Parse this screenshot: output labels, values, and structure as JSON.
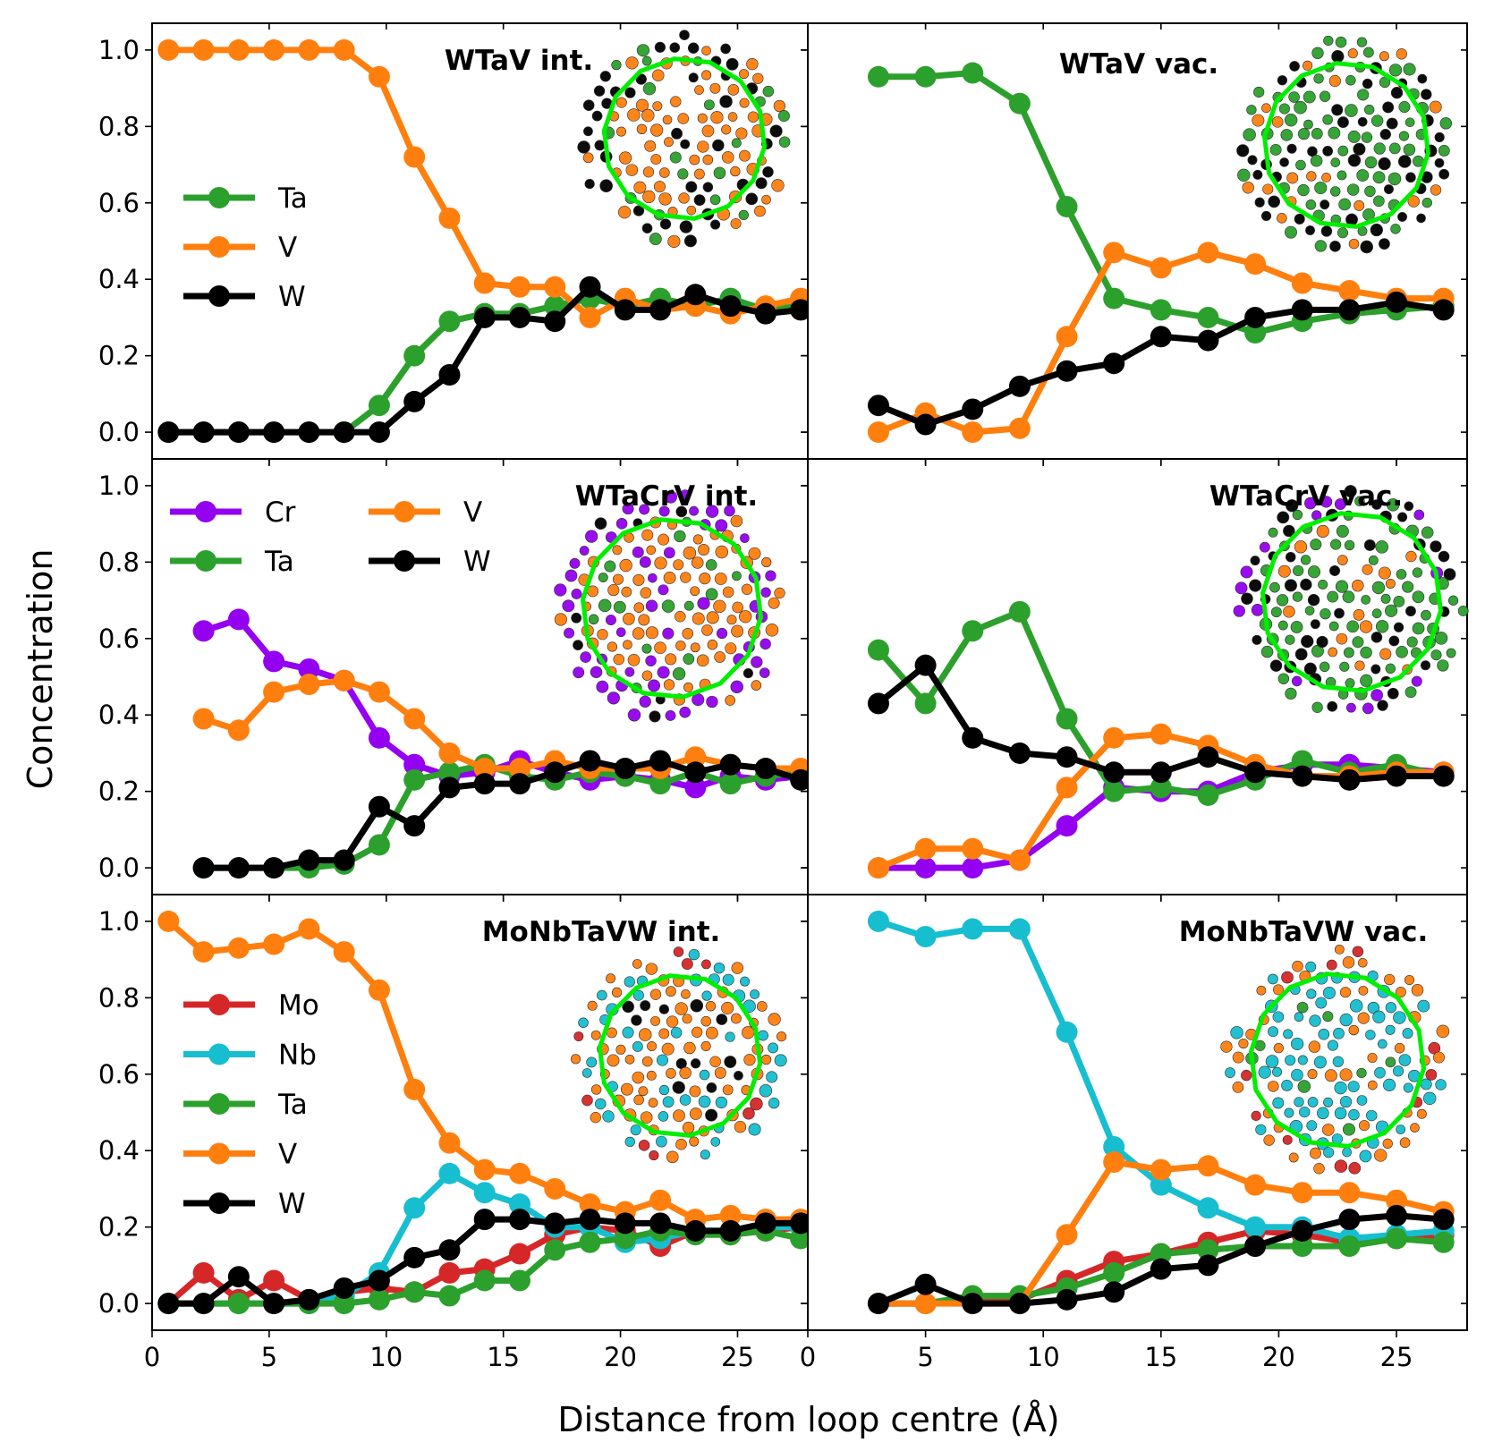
{
  "figure": {
    "xlabel": "Distance from loop centre (Å)",
    "ylabel": "Concentration"
  },
  "colors": {
    "Ta": "#2ca02c",
    "V": "#ff7f0e",
    "W": "#000000",
    "Cr": "#9400f0",
    "Mo": "#d62728",
    "Nb": "#17becf",
    "loop": "#00ee00"
  },
  "chart_data": [
    {
      "type": "line",
      "title": "WTaV int.",
      "xlabel": "Distance from loop centre (Å)",
      "ylabel": "Concentration",
      "xlim": [
        0,
        28
      ],
      "ylim": [
        -0.07,
        1.07
      ],
      "xticks": [
        "0",
        "5",
        "10",
        "15",
        "20",
        "25"
      ],
      "yticks": [
        "0.0",
        "0.2",
        "0.4",
        "0.6",
        "0.8",
        "1.0"
      ],
      "legend": {
        "columns": 1,
        "entries": [
          "Ta",
          "V",
          "W"
        ]
      },
      "inset": {
        "species": [
          "V",
          "W",
          "Ta"
        ]
      },
      "x": [
        0.7,
        2.2,
        3.7,
        5.2,
        6.7,
        8.2,
        9.7,
        11.2,
        12.7,
        14.2,
        15.7,
        17.2,
        18.7,
        20.2,
        21.7,
        23.2,
        24.7,
        26.2,
        27.7
      ],
      "series": [
        {
          "name": "Ta",
          "values": [
            0,
            0,
            0,
            0,
            0,
            0,
            0.07,
            0.2,
            0.29,
            0.31,
            0.31,
            0.33,
            0.35,
            0.33,
            0.35,
            0.33,
            0.35,
            0.32,
            0.33
          ]
        },
        {
          "name": "V",
          "values": [
            1.0,
            1.0,
            1.0,
            1.0,
            1.0,
            1.0,
            0.93,
            0.72,
            0.56,
            0.39,
            0.38,
            0.38,
            0.3,
            0.35,
            0.32,
            0.33,
            0.31,
            0.33,
            0.35
          ]
        },
        {
          "name": "W",
          "values": [
            0,
            0,
            0,
            0,
            0,
            0,
            0,
            0.08,
            0.15,
            0.3,
            0.3,
            0.29,
            0.38,
            0.32,
            0.32,
            0.36,
            0.33,
            0.31,
            0.32
          ]
        }
      ]
    },
    {
      "type": "line",
      "title": "WTaV vac.",
      "xlabel": "Distance from loop centre (Å)",
      "ylabel": "",
      "xlim": [
        0,
        28
      ],
      "ylim": [
        -0.07,
        1.07
      ],
      "xticks": [
        "0",
        "5",
        "10",
        "15",
        "20",
        "25"
      ],
      "yticks": [],
      "legend": {
        "columns": 1,
        "entries": []
      },
      "inset": {
        "species": [
          "Ta",
          "W",
          "V"
        ]
      },
      "x": [
        3,
        5,
        7,
        9,
        11,
        13,
        15,
        17,
        19,
        21,
        23,
        25,
        27
      ],
      "series": [
        {
          "name": "Ta",
          "values": [
            0.93,
            0.93,
            0.94,
            0.86,
            0.59,
            0.35,
            0.32,
            0.3,
            0.26,
            0.29,
            0.31,
            0.32,
            0.33
          ]
        },
        {
          "name": "V",
          "values": [
            0,
            0.05,
            0,
            0.01,
            0.25,
            0.47,
            0.43,
            0.47,
            0.44,
            0.39,
            0.37,
            0.35,
            0.35
          ]
        },
        {
          "name": "W",
          "values": [
            0.07,
            0.02,
            0.06,
            0.12,
            0.16,
            0.18,
            0.25,
            0.24,
            0.3,
            0.32,
            0.32,
            0.34,
            0.32
          ]
        }
      ]
    },
    {
      "type": "line",
      "title": "WTaCrV int.",
      "xlabel": "Distance from loop centre (Å)",
      "ylabel": "Concentration",
      "xlim": [
        0,
        28
      ],
      "ylim": [
        -0.07,
        1.07
      ],
      "xticks": [
        "0",
        "5",
        "10",
        "15",
        "20",
        "25"
      ],
      "yticks": [
        "0.0",
        "0.2",
        "0.4",
        "0.6",
        "0.8",
        "1.0"
      ],
      "legend": {
        "columns": 2,
        "entries": [
          "Cr",
          "Ta",
          "V",
          "W"
        ]
      },
      "inset": {
        "species": [
          "V",
          "Cr",
          "Ta",
          "W"
        ]
      },
      "x": [
        2.2,
        3.7,
        5.2,
        6.7,
        8.2,
        9.7,
        11.2,
        12.7,
        14.2,
        15.7,
        17.2,
        18.7,
        20.2,
        21.7,
        23.2,
        24.7,
        26.2,
        27.7
      ],
      "series": [
        {
          "name": "Cr",
          "values": [
            0.62,
            0.65,
            0.54,
            0.52,
            0.49,
            0.34,
            0.27,
            0.24,
            0.25,
            0.28,
            0.25,
            0.23,
            0.24,
            0.23,
            0.21,
            0.24,
            0.23,
            0.24
          ]
        },
        {
          "name": "Ta",
          "values": [
            0,
            0,
            0,
            0,
            0.01,
            0.06,
            0.23,
            0.25,
            0.27,
            0.24,
            0.23,
            0.25,
            0.24,
            0.22,
            0.25,
            0.22,
            0.24,
            0.25
          ]
        },
        {
          "name": "V",
          "values": [
            0.39,
            0.36,
            0.46,
            0.48,
            0.49,
            0.46,
            0.39,
            0.3,
            0.26,
            0.26,
            0.28,
            0.26,
            0.26,
            0.26,
            0.29,
            0.27,
            0.26,
            0.26
          ]
        },
        {
          "name": "W",
          "values": [
            0,
            0,
            0,
            0.02,
            0.02,
            0.16,
            0.11,
            0.21,
            0.22,
            0.22,
            0.25,
            0.28,
            0.26,
            0.28,
            0.25,
            0.27,
            0.26,
            0.23
          ]
        }
      ]
    },
    {
      "type": "line",
      "title": "WTaCrV vac.",
      "xlabel": "Distance from loop centre (Å)",
      "ylabel": "",
      "xlim": [
        0,
        28
      ],
      "ylim": [
        -0.07,
        1.07
      ],
      "xticks": [
        "0",
        "5",
        "10",
        "15",
        "20",
        "25"
      ],
      "yticks": [],
      "legend": {
        "columns": 1,
        "entries": []
      },
      "inset": {
        "species": [
          "Ta",
          "W",
          "V",
          "Cr"
        ]
      },
      "x": [
        3,
        5,
        7,
        9,
        11,
        13,
        15,
        17,
        19,
        21,
        23,
        25,
        27
      ],
      "series": [
        {
          "name": "Cr",
          "values": [
            0,
            0,
            0,
            0.02,
            0.11,
            0.21,
            0.2,
            0.2,
            0.25,
            0.27,
            0.27,
            0.26,
            0.25
          ]
        },
        {
          "name": "Ta",
          "values": [
            0.57,
            0.43,
            0.62,
            0.67,
            0.39,
            0.2,
            0.21,
            0.19,
            0.23,
            0.28,
            0.25,
            0.27,
            0.24
          ]
        },
        {
          "name": "V",
          "values": [
            0,
            0.05,
            0.05,
            0.02,
            0.21,
            0.34,
            0.35,
            0.32,
            0.27,
            0.24,
            0.24,
            0.25,
            0.25
          ]
        },
        {
          "name": "W",
          "values": [
            0.43,
            0.53,
            0.34,
            0.3,
            0.29,
            0.25,
            0.25,
            0.29,
            0.25,
            0.24,
            0.23,
            0.24,
            0.24
          ]
        }
      ]
    },
    {
      "type": "line",
      "title": "MoNbTaVW int.",
      "xlabel": "Distance from loop centre (Å)",
      "ylabel": "Concentration",
      "xlim": [
        0,
        28
      ],
      "ylim": [
        -0.07,
        1.07
      ],
      "xticks": [
        "0",
        "5",
        "10",
        "15",
        "20",
        "25"
      ],
      "yticks": [
        "0.0",
        "0.2",
        "0.4",
        "0.6",
        "0.8",
        "1.0"
      ],
      "legend": {
        "columns": 1,
        "entries": [
          "Mo",
          "Nb",
          "Ta",
          "V",
          "W"
        ]
      },
      "inset": {
        "species": [
          "V",
          "Nb",
          "W",
          "Mo"
        ]
      },
      "x": [
        0.7,
        2.2,
        3.7,
        5.2,
        6.7,
        8.2,
        9.7,
        11.2,
        12.7,
        14.2,
        15.7,
        17.2,
        18.7,
        20.2,
        21.7,
        23.2,
        24.7,
        26.2,
        27.7
      ],
      "series": [
        {
          "name": "Mo",
          "values": [
            0,
            0.08,
            0.01,
            0.06,
            0.01,
            0.03,
            0.04,
            0.03,
            0.08,
            0.09,
            0.13,
            0.18,
            0.2,
            0.19,
            0.15,
            0.19,
            0.18,
            0.19,
            0.2
          ]
        },
        {
          "name": "Nb",
          "values": [
            0,
            0,
            0,
            0,
            0,
            0.02,
            0.08,
            0.25,
            0.34,
            0.29,
            0.26,
            0.2,
            0.2,
            0.16,
            0.17,
            0.19,
            0.19,
            0.2,
            0.2
          ]
        },
        {
          "name": "Ta",
          "values": [
            0,
            0,
            0,
            0,
            0,
            0,
            0.01,
            0.03,
            0.02,
            0.06,
            0.06,
            0.14,
            0.16,
            0.17,
            0.19,
            0.18,
            0.18,
            0.19,
            0.17
          ]
        },
        {
          "name": "V",
          "values": [
            1.0,
            0.92,
            0.93,
            0.94,
            0.98,
            0.92,
            0.82,
            0.56,
            0.42,
            0.35,
            0.34,
            0.3,
            0.26,
            0.24,
            0.27,
            0.22,
            0.23,
            0.22,
            0.22
          ]
        },
        {
          "name": "W",
          "values": [
            0,
            0,
            0.07,
            0,
            0.01,
            0.04,
            0.06,
            0.12,
            0.14,
            0.22,
            0.22,
            0.21,
            0.22,
            0.21,
            0.21,
            0.19,
            0.19,
            0.21,
            0.21
          ]
        }
      ]
    },
    {
      "type": "line",
      "title": "MoNbTaVW vac.",
      "xlabel": "Distance from loop centre (Å)",
      "ylabel": "",
      "xlim": [
        0,
        28
      ],
      "ylim": [
        -0.07,
        1.07
      ],
      "xticks": [
        "0",
        "5",
        "10",
        "15",
        "20",
        "25"
      ],
      "yticks": [],
      "legend": {
        "columns": 1,
        "entries": []
      },
      "inset": {
        "species": [
          "Nb",
          "V",
          "Ta",
          "W",
          "Mo"
        ]
      },
      "x": [
        3,
        5,
        7,
        9,
        11,
        13,
        15,
        17,
        19,
        21,
        23,
        25,
        27
      ],
      "series": [
        {
          "name": "Mo",
          "values": [
            0,
            0,
            0.01,
            0.01,
            0.06,
            0.11,
            0.13,
            0.16,
            0.19,
            0.18,
            0.16,
            0.17,
            0.18
          ]
        },
        {
          "name": "Nb",
          "values": [
            1.0,
            0.96,
            0.98,
            0.98,
            0.71,
            0.41,
            0.31,
            0.25,
            0.2,
            0.2,
            0.17,
            0.18,
            0.19
          ]
        },
        {
          "name": "Ta",
          "values": [
            0,
            0,
            0.02,
            0.02,
            0.04,
            0.08,
            0.13,
            0.14,
            0.15,
            0.15,
            0.15,
            0.17,
            0.16
          ]
        },
        {
          "name": "V",
          "values": [
            0,
            0,
            0,
            0,
            0.18,
            0.37,
            0.35,
            0.36,
            0.31,
            0.29,
            0.29,
            0.27,
            0.24
          ]
        },
        {
          "name": "W",
          "values": [
            0,
            0.05,
            0,
            0,
            0.01,
            0.03,
            0.09,
            0.1,
            0.15,
            0.19,
            0.22,
            0.23,
            0.22
          ]
        }
      ]
    }
  ]
}
